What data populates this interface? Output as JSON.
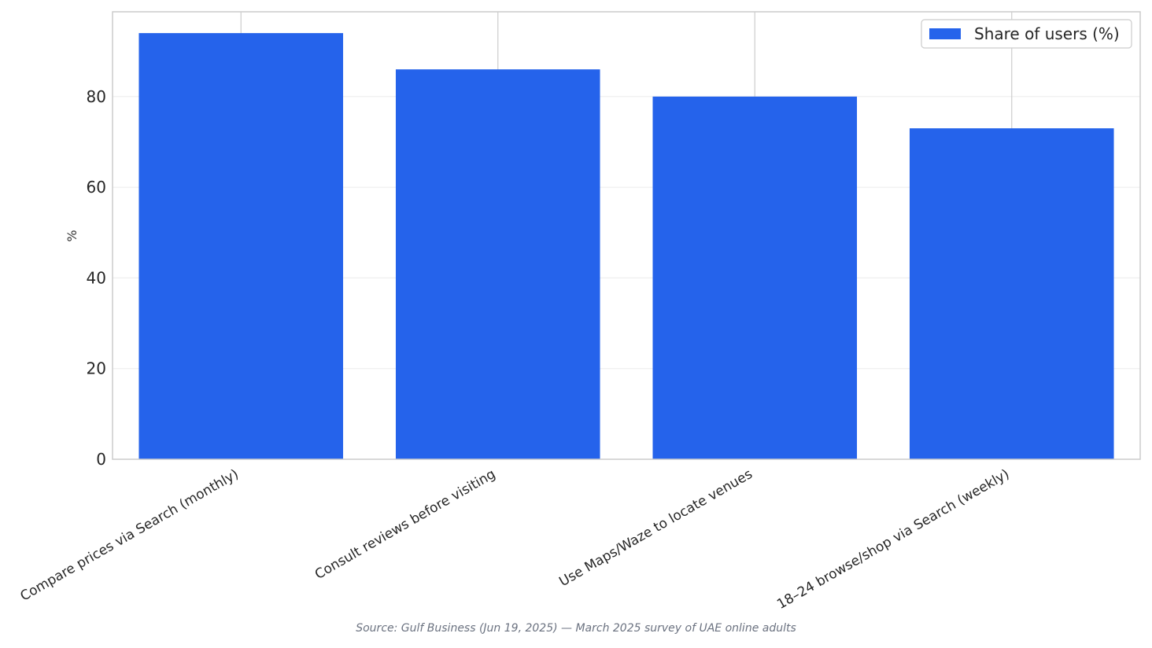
{
  "chart_data": {
    "type": "bar",
    "categories": [
      "Compare prices via Search (monthly)",
      "Consult reviews before visiting",
      "Use Maps/Waze to locate venues",
      "18–24 browse/shop via Search (weekly)"
    ],
    "series": [
      {
        "name": "Share of users (%)",
        "values": [
          94,
          86,
          80,
          73
        ],
        "color": "#2563eb"
      }
    ],
    "xlabel": "",
    "ylabel": "%",
    "ylim": [
      0,
      98.7
    ],
    "yticks": [
      0,
      20,
      40,
      60,
      80
    ],
    "grid": true,
    "legend": "top-right"
  },
  "source": "Source: Gulf Business (Jun 19, 2025) — March 2025 survey of UAE online adults"
}
